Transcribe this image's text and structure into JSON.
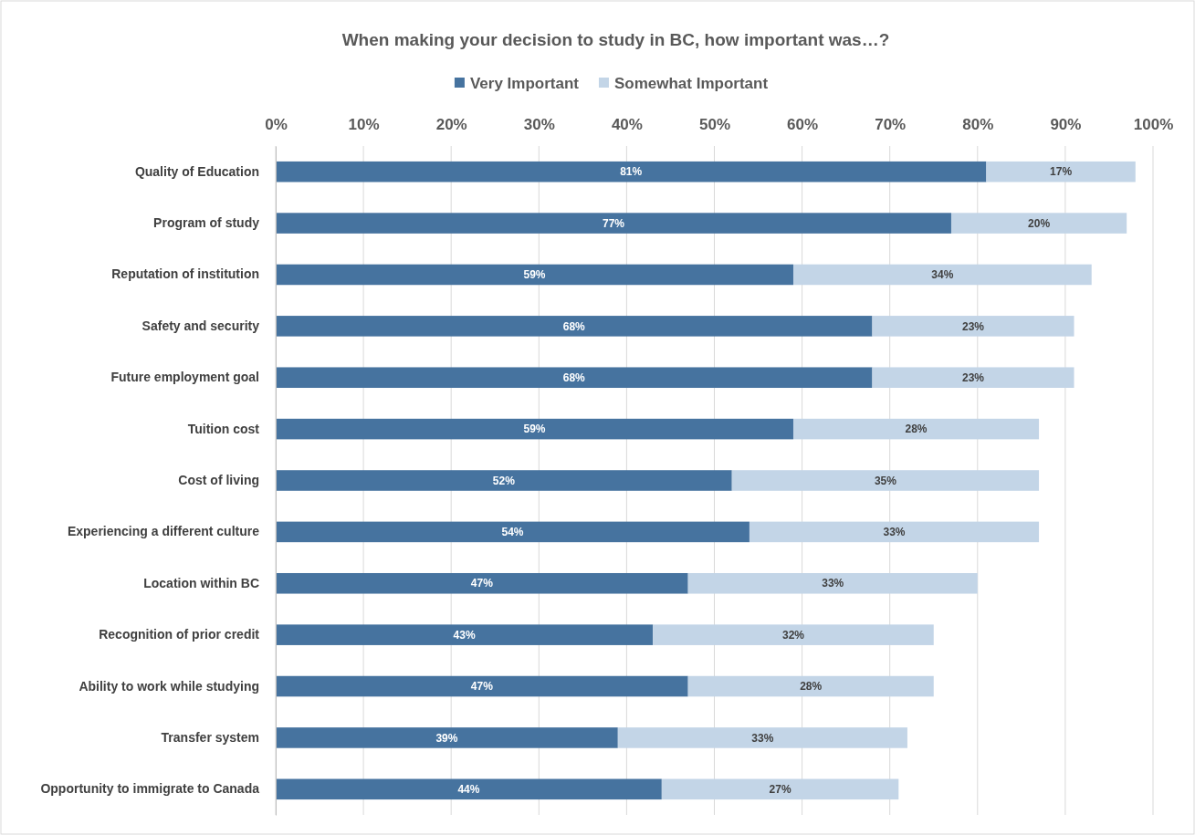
{
  "chart_data": {
    "type": "bar",
    "orientation": "horizontal",
    "stacked": true,
    "title": "When making your decision to study in BC, how important was…?",
    "categories": [
      "Quality of Education",
      "Program of study",
      "Reputation of institution",
      "Safety and security",
      "Future employment goal",
      "Tuition cost",
      "Cost of living",
      "Experiencing a different culture",
      "Location within BC",
      "Recognition of prior credit",
      "Ability to work while studying",
      "Transfer system",
      "Opportunity to immigrate to Canada"
    ],
    "series": [
      {
        "name": "Very Important",
        "color": "#46739f",
        "values": [
          81,
          77,
          59,
          68,
          68,
          59,
          52,
          54,
          47,
          43,
          47,
          39,
          44
        ],
        "value_labels": [
          "81%",
          "77%",
          "59%",
          "68%",
          "68%",
          "59%",
          "52%",
          "54%",
          "47%",
          "43%",
          "47%",
          "39%",
          "44%"
        ]
      },
      {
        "name": "Somewhat Important",
        "color": "#c3d5e7",
        "values": [
          17,
          20,
          34,
          23,
          23,
          28,
          35,
          33,
          33,
          32,
          28,
          33,
          27
        ],
        "value_labels": [
          "17%",
          "20%",
          "34%",
          "23%",
          "23%",
          "28%",
          "35%",
          "33%",
          "33%",
          "32%",
          "28%",
          "33%",
          "27%"
        ]
      }
    ],
    "xlim": [
      0,
      100
    ],
    "xticks": [
      {
        "value": 0,
        "label": "0%"
      },
      {
        "value": 10,
        "label": "10%"
      },
      {
        "value": 20,
        "label": "20%"
      },
      {
        "value": 30,
        "label": "30%"
      },
      {
        "value": 40,
        "label": "40%"
      },
      {
        "value": 50,
        "label": "50%"
      },
      {
        "value": 60,
        "label": "60%"
      },
      {
        "value": 70,
        "label": "70%"
      },
      {
        "value": 80,
        "label": "80%"
      },
      {
        "value": 90,
        "label": "90%"
      },
      {
        "value": 100,
        "label": "100%"
      }
    ],
    "grid": "x",
    "legend": "top"
  }
}
